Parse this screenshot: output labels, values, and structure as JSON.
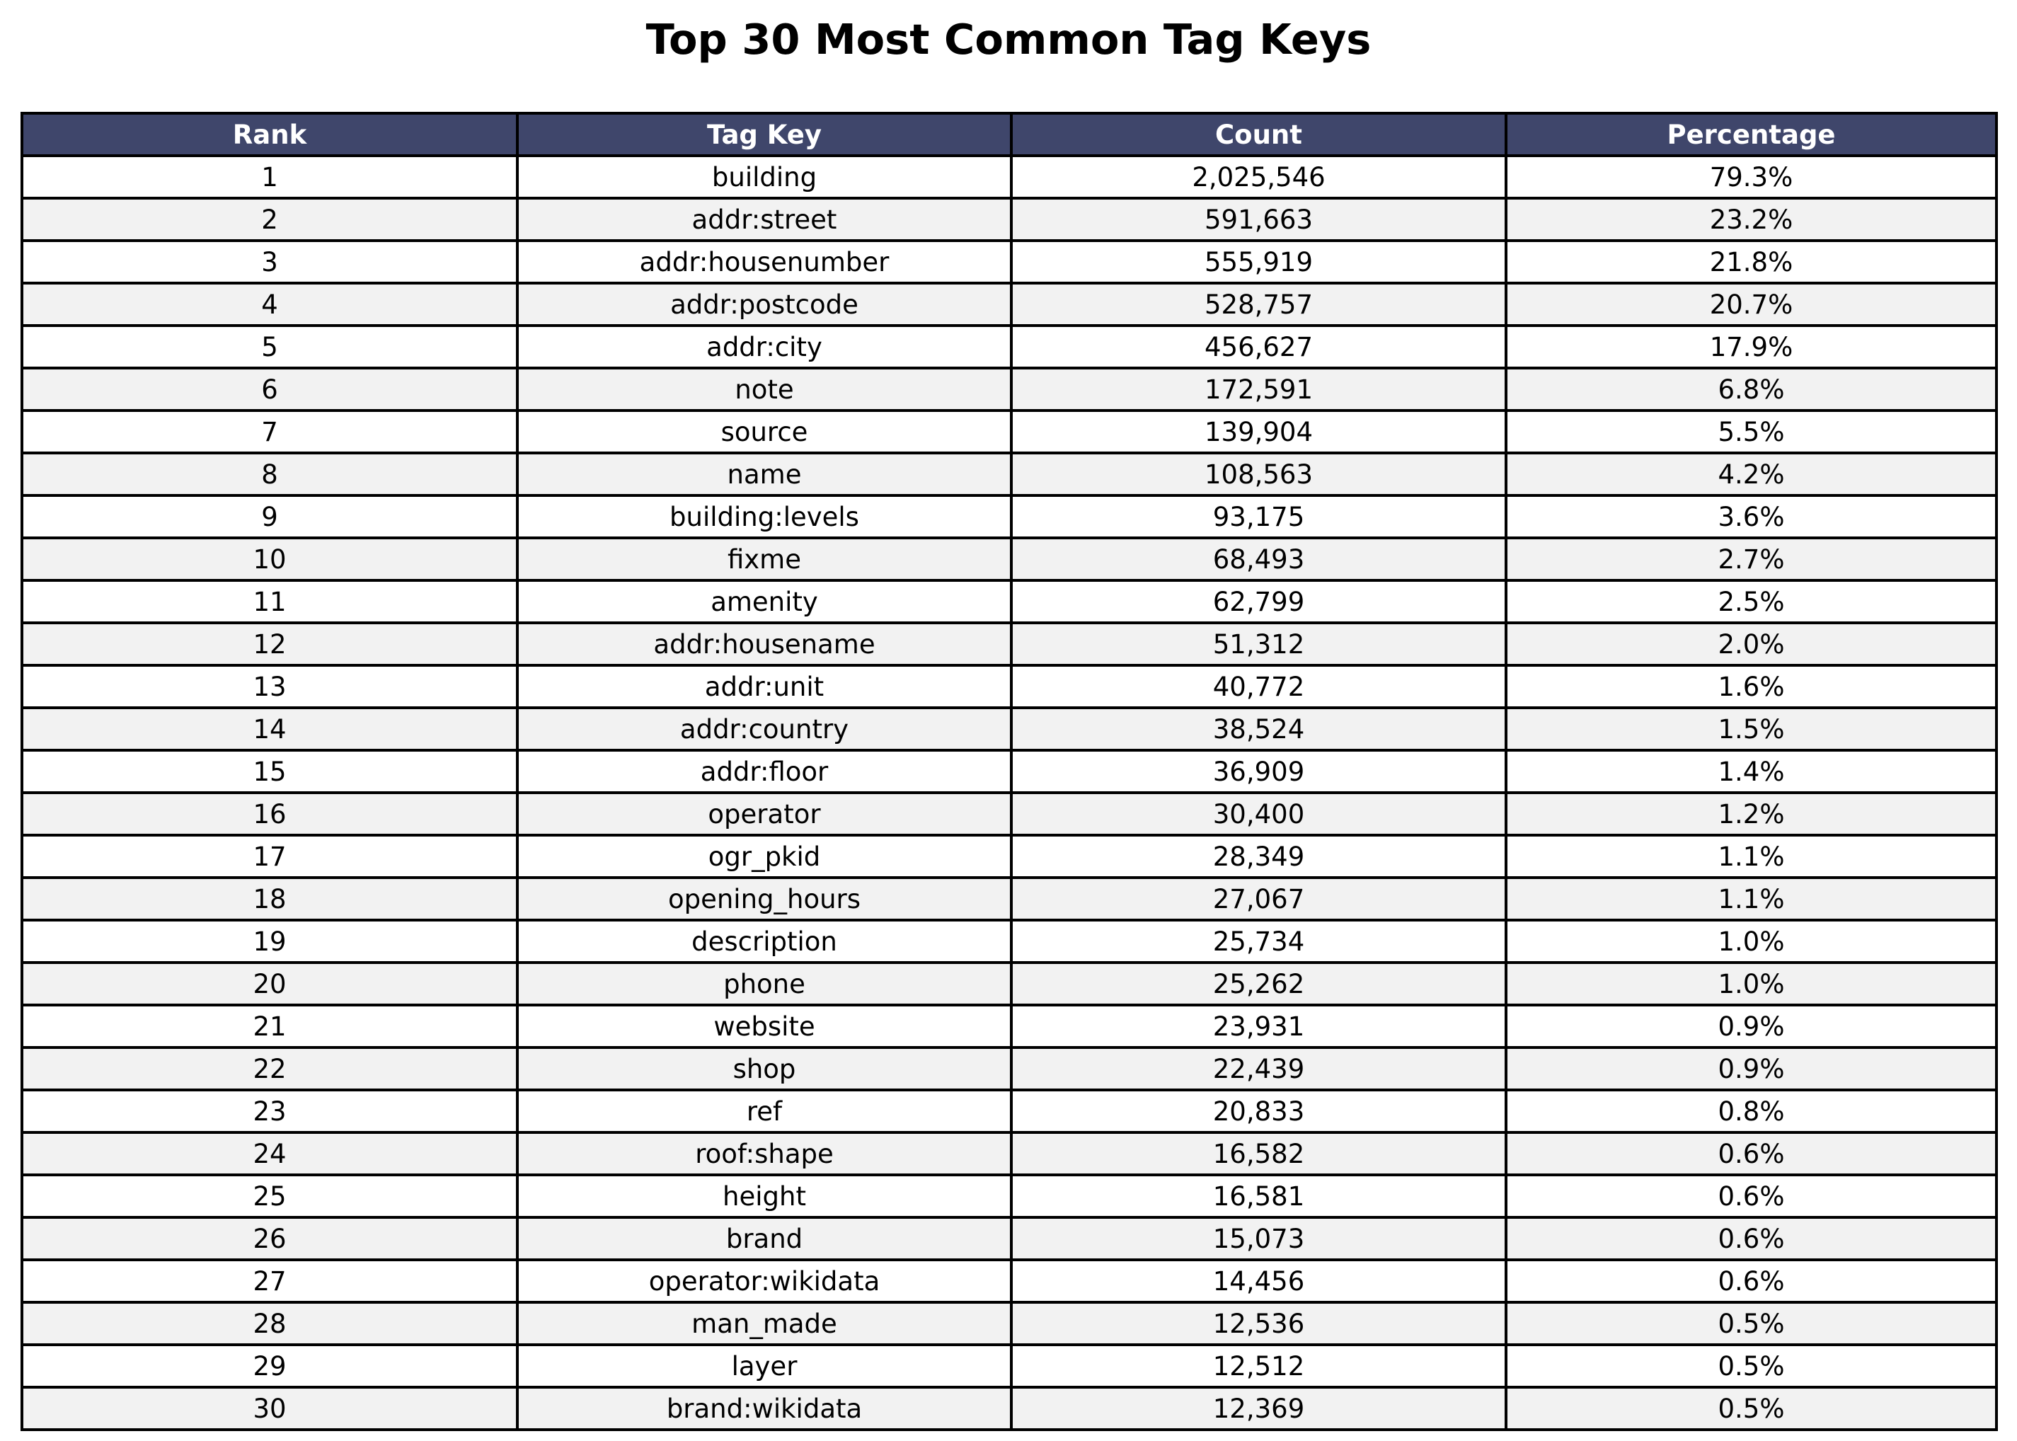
{
  "chart_data": {
    "type": "table",
    "title": "Top 30 Most Common Tag Keys",
    "columns": [
      "Rank",
      "Tag Key",
      "Count",
      "Percentage"
    ],
    "rows": [
      [
        "1",
        "building",
        "2,025,546",
        "79.3%"
      ],
      [
        "2",
        "addr:street",
        "591,663",
        "23.2%"
      ],
      [
        "3",
        "addr:housenumber",
        "555,919",
        "21.8%"
      ],
      [
        "4",
        "addr:postcode",
        "528,757",
        "20.7%"
      ],
      [
        "5",
        "addr:city",
        "456,627",
        "17.9%"
      ],
      [
        "6",
        "note",
        "172,591",
        "6.8%"
      ],
      [
        "7",
        "source",
        "139,904",
        "5.5%"
      ],
      [
        "8",
        "name",
        "108,563",
        "4.2%"
      ],
      [
        "9",
        "building:levels",
        "93,175",
        "3.6%"
      ],
      [
        "10",
        "fixme",
        "68,493",
        "2.7%"
      ],
      [
        "11",
        "amenity",
        "62,799",
        "2.5%"
      ],
      [
        "12",
        "addr:housename",
        "51,312",
        "2.0%"
      ],
      [
        "13",
        "addr:unit",
        "40,772",
        "1.6%"
      ],
      [
        "14",
        "addr:country",
        "38,524",
        "1.5%"
      ],
      [
        "15",
        "addr:floor",
        "36,909",
        "1.4%"
      ],
      [
        "16",
        "operator",
        "30,400",
        "1.2%"
      ],
      [
        "17",
        "ogr_pkid",
        "28,349",
        "1.1%"
      ],
      [
        "18",
        "opening_hours",
        "27,067",
        "1.1%"
      ],
      [
        "19",
        "description",
        "25,734",
        "1.0%"
      ],
      [
        "20",
        "phone",
        "25,262",
        "1.0%"
      ],
      [
        "21",
        "website",
        "23,931",
        "0.9%"
      ],
      [
        "22",
        "shop",
        "22,439",
        "0.9%"
      ],
      [
        "23",
        "ref",
        "20,833",
        "0.8%"
      ],
      [
        "24",
        "roof:shape",
        "16,582",
        "0.6%"
      ],
      [
        "25",
        "height",
        "16,581",
        "0.6%"
      ],
      [
        "26",
        "brand",
        "15,073",
        "0.6%"
      ],
      [
        "27",
        "operator:wikidata",
        "14,456",
        "0.6%"
      ],
      [
        "28",
        "man_made",
        "12,536",
        "0.5%"
      ],
      [
        "29",
        "layer",
        "12,512",
        "0.5%"
      ],
      [
        "30",
        "brand:wikidata",
        "12,369",
        "0.5%"
      ]
    ]
  },
  "colors": {
    "header_background": "#3f466b",
    "header_text": "#ffffff",
    "row_stripe": "#f2f2f2",
    "row_plain": "#ffffff",
    "border": "#000000"
  }
}
